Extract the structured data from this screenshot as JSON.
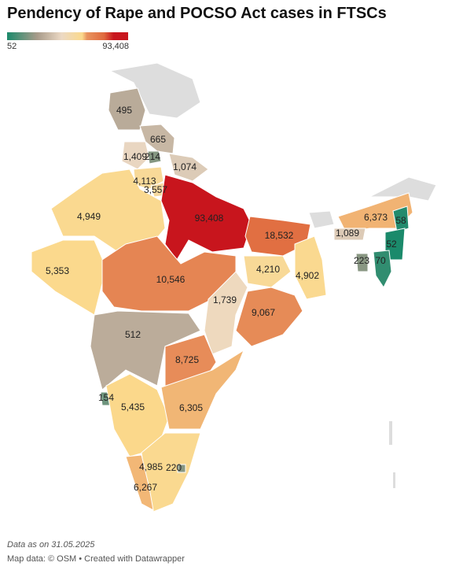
{
  "header": {
    "title": "Pendency of Rape and POCSO Act cases in FTSCs"
  },
  "legend": {
    "min": 52,
    "max": {
      "value": 93408,
      "label": "93,408"
    }
  },
  "regions": [
    495,
    665,
    {
      "value": 1409,
      "label": "1,409"
    },
    214,
    {
      "value": 1074,
      "label": "1,074"
    },
    {
      "value": 4113,
      "label": "4,113"
    },
    {
      "value": 3557,
      "label": "3,557"
    },
    {
      "value": 4949,
      "label": "4,949"
    },
    {
      "value": 93408,
      "label": "93,408"
    },
    {
      "value": 18532,
      "label": "18,532"
    },
    {
      "value": 6373,
      "label": "6,373"
    },
    58,
    {
      "value": 1089,
      "label": "1,089"
    },
    52,
    223,
    70,
    {
      "value": 5353,
      "label": "5,353"
    },
    {
      "value": 10546,
      "label": "10,546"
    },
    {
      "value": 4210,
      "label": "4,210"
    },
    {
      "value": 4902,
      "label": "4,902"
    },
    {
      "value": 1739,
      "label": "1,739"
    },
    {
      "value": 9067,
      "label": "9,067"
    },
    512,
    {
      "value": 8725,
      "label": "8,725"
    },
    154,
    {
      "value": 5435,
      "label": "5,435"
    },
    {
      "value": 6305,
      "label": "6,305"
    },
    {
      "value": 4985,
      "label": "4,985"
    },
    220,
    {
      "value": 6267,
      "label": "6,267"
    }
  ],
  "footer": {
    "note": "Data as on 31.05.2025",
    "credit": "Map data: © OSM • Created with Datawrapper"
  }
}
